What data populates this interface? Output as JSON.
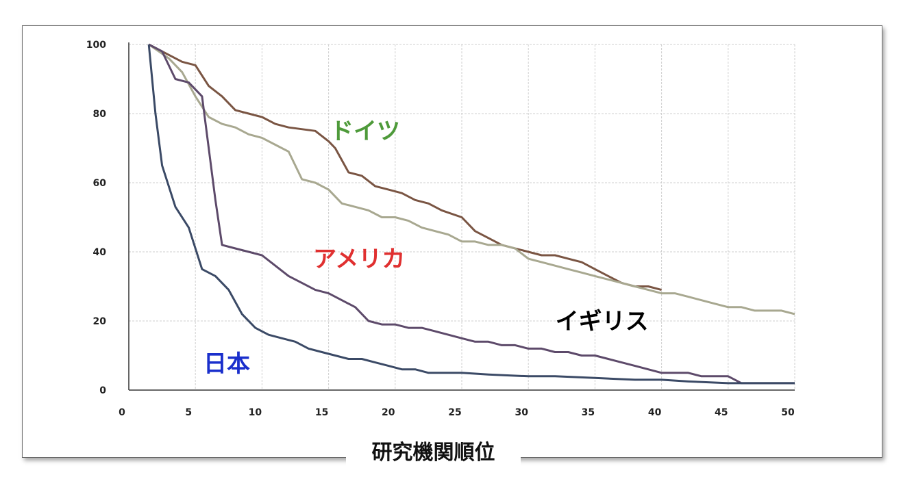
{
  "chart_data": {
    "type": "line",
    "xlabel": "研究機関順位",
    "ylabel": "",
    "xlim": [
      0,
      50
    ],
    "ylim": [
      0,
      100
    ],
    "xticks": [
      0,
      5,
      10,
      15,
      20,
      25,
      30,
      35,
      40,
      45,
      50
    ],
    "yticks": [
      0,
      20,
      40,
      60,
      80,
      100
    ],
    "grid": true,
    "legend": "inline labels",
    "series": [
      {
        "name": "ドイツ",
        "color": "#7a5543",
        "label_color": "#4e9a3a",
        "points": [
          [
            1.5,
            100
          ],
          [
            3,
            97
          ],
          [
            4,
            95
          ],
          [
            5,
            94
          ],
          [
            6,
            88
          ],
          [
            7,
            85
          ],
          [
            8,
            81
          ],
          [
            9,
            80
          ],
          [
            10,
            79
          ],
          [
            11,
            77
          ],
          [
            12,
            76
          ],
          [
            14,
            75
          ],
          [
            15,
            72
          ],
          [
            15.5,
            70
          ],
          [
            16.5,
            63
          ],
          [
            17.5,
            62
          ],
          [
            18.5,
            59
          ],
          [
            19.5,
            58
          ],
          [
            20.5,
            57
          ],
          [
            21.5,
            55
          ],
          [
            22.5,
            54
          ],
          [
            23.5,
            52
          ],
          [
            25,
            50
          ],
          [
            26,
            46
          ],
          [
            27,
            44
          ],
          [
            28,
            42
          ],
          [
            30,
            40
          ],
          [
            31,
            39
          ],
          [
            32,
            39
          ],
          [
            33,
            38
          ],
          [
            34,
            37
          ],
          [
            35,
            35
          ],
          [
            36,
            33
          ],
          [
            37,
            31
          ],
          [
            38,
            30
          ],
          [
            39,
            30
          ],
          [
            40,
            29
          ]
        ]
      },
      {
        "name": "",
        "color": "#a8a890",
        "points": [
          [
            1.5,
            100
          ],
          [
            3,
            96
          ],
          [
            4,
            92
          ],
          [
            5,
            85
          ],
          [
            6,
            79
          ],
          [
            7,
            77
          ],
          [
            8,
            76
          ],
          [
            9,
            74
          ],
          [
            10,
            73
          ],
          [
            11,
            71
          ],
          [
            12,
            69
          ],
          [
            13,
            61
          ],
          [
            14,
            60
          ],
          [
            15,
            58
          ],
          [
            16,
            54
          ],
          [
            17,
            53
          ],
          [
            18,
            52
          ],
          [
            19,
            50
          ],
          [
            20,
            50
          ],
          [
            21,
            49
          ],
          [
            22,
            47
          ],
          [
            23,
            46
          ],
          [
            24,
            45
          ],
          [
            25,
            43
          ],
          [
            26,
            43
          ],
          [
            27,
            42
          ],
          [
            28,
            42
          ],
          [
            29,
            41
          ],
          [
            30,
            38
          ],
          [
            31,
            37
          ],
          [
            32,
            36
          ],
          [
            33,
            35
          ],
          [
            34,
            34
          ],
          [
            35,
            33
          ],
          [
            36,
            32
          ],
          [
            37,
            31
          ],
          [
            38,
            30
          ],
          [
            39,
            29
          ],
          [
            40,
            28
          ],
          [
            41,
            28
          ],
          [
            42,
            27
          ],
          [
            43,
            26
          ],
          [
            44,
            25
          ],
          [
            45,
            24
          ],
          [
            46,
            24
          ],
          [
            47,
            23
          ],
          [
            48,
            23
          ],
          [
            49,
            23
          ],
          [
            50,
            22
          ]
        ]
      },
      {
        "name": "アメリカ",
        "color": "#5d4a6a",
        "label_color": "#e03030",
        "points": [
          [
            1.5,
            100
          ],
          [
            2.5,
            98
          ],
          [
            3.5,
            90
          ],
          [
            4.5,
            89
          ],
          [
            5.5,
            85
          ],
          [
            6.5,
            55
          ],
          [
            7,
            42
          ],
          [
            8,
            41
          ],
          [
            9,
            40
          ],
          [
            10,
            39
          ],
          [
            11,
            36
          ],
          [
            12,
            33
          ],
          [
            13,
            31
          ],
          [
            14,
            29
          ],
          [
            15,
            28
          ],
          [
            16,
            26
          ],
          [
            17,
            24
          ],
          [
            18,
            20
          ],
          [
            19,
            19
          ],
          [
            20,
            19
          ],
          [
            21,
            18
          ],
          [
            22,
            18
          ],
          [
            23,
            17
          ],
          [
            24,
            16
          ],
          [
            25,
            15
          ],
          [
            26,
            14
          ],
          [
            27,
            14
          ],
          [
            28,
            13
          ],
          [
            29,
            13
          ],
          [
            30,
            12
          ],
          [
            31,
            12
          ],
          [
            32,
            11
          ],
          [
            33,
            11
          ],
          [
            34,
            10
          ],
          [
            35,
            10
          ],
          [
            36,
            9
          ],
          [
            37,
            8
          ],
          [
            38,
            7
          ],
          [
            39,
            6
          ],
          [
            40,
            5
          ],
          [
            41,
            5
          ],
          [
            42,
            5
          ],
          [
            43,
            4
          ],
          [
            44,
            4
          ],
          [
            45,
            4
          ],
          [
            46,
            2
          ],
          [
            47,
            2
          ],
          [
            48,
            2
          ],
          [
            49,
            2
          ],
          [
            50,
            2
          ]
        ]
      },
      {
        "name": "日本",
        "color": "#3b4a66",
        "label_color": "#1a2fcc",
        "points": [
          [
            1.5,
            100
          ],
          [
            2,
            80
          ],
          [
            2.5,
            65
          ],
          [
            3.5,
            53
          ],
          [
            4.5,
            47
          ],
          [
            5.5,
            35
          ],
          [
            6.5,
            33
          ],
          [
            7.5,
            29
          ],
          [
            8.5,
            22
          ],
          [
            9.5,
            18
          ],
          [
            10.5,
            16
          ],
          [
            11.5,
            15
          ],
          [
            12.5,
            14
          ],
          [
            13.5,
            12
          ],
          [
            14.5,
            11
          ],
          [
            15.5,
            10
          ],
          [
            16.5,
            9
          ],
          [
            17.5,
            9
          ],
          [
            18.5,
            8
          ],
          [
            19.5,
            7
          ],
          [
            20.5,
            6
          ],
          [
            21.5,
            6
          ],
          [
            22.5,
            5
          ],
          [
            23.5,
            5
          ],
          [
            25,
            5
          ],
          [
            27,
            4.5
          ],
          [
            30,
            4
          ],
          [
            32,
            4
          ],
          [
            35,
            3.5
          ],
          [
            38,
            3
          ],
          [
            40,
            3
          ],
          [
            42,
            2.5
          ],
          [
            45,
            2
          ],
          [
            48,
            2
          ],
          [
            50,
            2
          ]
        ]
      }
    ],
    "annotations": [
      {
        "text": "イギリス",
        "color": "#000000",
        "x": 34.5,
        "y": 20
      }
    ]
  }
}
